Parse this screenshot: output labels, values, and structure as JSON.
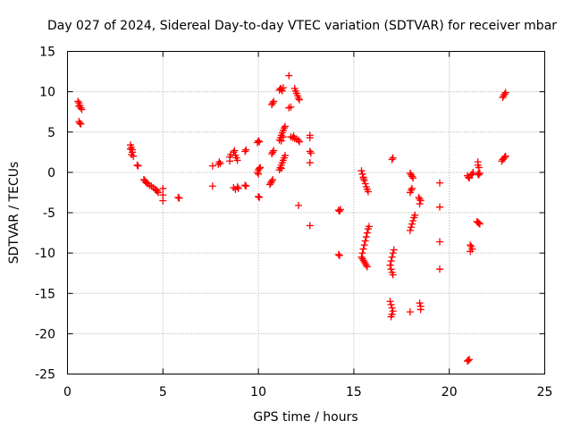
{
  "chart_data": {
    "type": "scatter",
    "title": "Day 027 of 2024, Sidereal Day-to-day VTEC variation (SDTVAR) for receiver mbar",
    "xlabel": "GPS time / hours",
    "ylabel": "SDTVAR / TECUs",
    "xlim": [
      0,
      25
    ],
    "ylim": [
      -25,
      15
    ],
    "xticks": [
      "0",
      "5",
      "10",
      "15",
      "20",
      "25"
    ],
    "yticks": [
      "15",
      "10",
      "5",
      "0",
      "-5",
      "-10",
      "-15",
      "-20",
      "-25"
    ],
    "xtick_values": [
      0,
      5,
      10,
      15,
      20,
      25
    ],
    "ytick_values": [
      15,
      10,
      5,
      0,
      -5,
      -10,
      -15,
      -20,
      -25
    ],
    "grid": true,
    "marker": "plus",
    "marker_color": "#ff0000",
    "series": [
      {
        "points": [
          [
            0.55,
            8.8
          ],
          [
            0.6,
            8.6
          ],
          [
            0.65,
            8.3
          ],
          [
            0.7,
            8.0
          ],
          [
            0.75,
            7.8
          ],
          [
            0.6,
            8.2
          ],
          [
            0.6,
            6.3
          ],
          [
            0.65,
            6.1
          ],
          [
            0.7,
            6.0
          ],
          [
            3.3,
            3.4
          ],
          [
            3.35,
            3.1
          ],
          [
            3.4,
            2.8
          ],
          [
            3.4,
            2.5
          ],
          [
            3.35,
            2.2
          ],
          [
            3.45,
            2.0
          ],
          [
            3.3,
            2.9
          ],
          [
            3.65,
            0.9
          ],
          [
            3.7,
            0.8
          ],
          [
            4.0,
            -0.9
          ],
          [
            4.05,
            -1.0
          ],
          [
            4.1,
            -1.2
          ],
          [
            4.2,
            -1.4
          ],
          [
            4.3,
            -1.6
          ],
          [
            4.4,
            -1.7
          ],
          [
            4.5,
            -1.9
          ],
          [
            4.6,
            -2.1
          ],
          [
            4.7,
            -2.3
          ],
          [
            4.75,
            -2.5
          ],
          [
            4.65,
            -2.2
          ],
          [
            4.15,
            -1.3
          ],
          [
            5.0,
            -2.0
          ],
          [
            5.0,
            -2.8
          ],
          [
            5.0,
            -3.5
          ],
          [
            5.8,
            -3.1
          ],
          [
            5.85,
            -3.2
          ],
          [
            7.6,
            -1.7
          ],
          [
            7.6,
            0.8
          ],
          [
            7.9,
            1.0
          ],
          [
            7.95,
            1.3
          ],
          [
            8.0,
            1.1
          ],
          [
            8.5,
            1.9
          ],
          [
            8.5,
            1.4
          ],
          [
            8.55,
            2.2
          ],
          [
            8.7,
            2.5
          ],
          [
            8.75,
            2.7
          ],
          [
            8.8,
            2.1
          ],
          [
            8.85,
            1.8
          ],
          [
            8.9,
            1.5
          ],
          [
            8.7,
            -1.9
          ],
          [
            8.8,
            -2.1
          ],
          [
            8.9,
            -1.8
          ],
          [
            8.95,
            -2.0
          ],
          [
            9.3,
            2.6
          ],
          [
            9.35,
            2.8
          ],
          [
            9.3,
            -1.6
          ],
          [
            9.35,
            -1.7
          ],
          [
            9.95,
            3.7
          ],
          [
            10.0,
            3.9
          ],
          [
            10.05,
            3.8
          ],
          [
            9.95,
            0.0
          ],
          [
            10.0,
            0.3
          ],
          [
            10.05,
            0.5
          ],
          [
            10.1,
            0.6
          ],
          [
            10.0,
            -3.0
          ],
          [
            10.05,
            -3.1
          ],
          [
            10.0,
            -0.2
          ],
          [
            10.7,
            8.4
          ],
          [
            10.75,
            8.6
          ],
          [
            10.8,
            8.8
          ],
          [
            10.7,
            2.3
          ],
          [
            10.75,
            2.5
          ],
          [
            10.8,
            2.7
          ],
          [
            10.6,
            -1.5
          ],
          [
            10.65,
            -1.3
          ],
          [
            10.7,
            -1.1
          ],
          [
            10.75,
            -0.9
          ],
          [
            11.1,
            10.2
          ],
          [
            11.2,
            10.3
          ],
          [
            11.3,
            10.5
          ],
          [
            11.25,
            10.1
          ],
          [
            11.15,
            10.4
          ],
          [
            11.1,
            4.0
          ],
          [
            11.15,
            4.3
          ],
          [
            11.2,
            4.6
          ],
          [
            11.25,
            4.9
          ],
          [
            11.3,
            5.2
          ],
          [
            11.35,
            5.5
          ],
          [
            11.4,
            5.7
          ],
          [
            11.2,
            3.9
          ],
          [
            11.3,
            4.4
          ],
          [
            11.1,
            0.3
          ],
          [
            11.15,
            0.6
          ],
          [
            11.2,
            0.9
          ],
          [
            11.25,
            1.2
          ],
          [
            11.3,
            1.5
          ],
          [
            11.35,
            1.8
          ],
          [
            11.4,
            2.1
          ],
          [
            11.2,
            0.5
          ],
          [
            11.6,
            12.0
          ],
          [
            11.6,
            8.0
          ],
          [
            11.7,
            8.1
          ],
          [
            11.7,
            4.4
          ],
          [
            11.8,
            4.3
          ],
          [
            11.9,
            4.2
          ],
          [
            12.0,
            4.1
          ],
          [
            12.1,
            4.0
          ],
          [
            12.15,
            3.8
          ],
          [
            11.85,
            4.5
          ],
          [
            11.9,
            10.4
          ],
          [
            11.95,
            10.1
          ],
          [
            12.0,
            9.8
          ],
          [
            12.05,
            9.5
          ],
          [
            12.1,
            9.2
          ],
          [
            12.15,
            9.0
          ],
          [
            12.1,
            -4.1
          ],
          [
            12.7,
            4.6
          ],
          [
            12.7,
            4.3
          ],
          [
            12.7,
            2.6
          ],
          [
            12.75,
            2.4
          ],
          [
            12.7,
            1.2
          ],
          [
            12.7,
            -6.6
          ],
          [
            14.2,
            -4.7
          ],
          [
            14.25,
            -4.8
          ],
          [
            14.3,
            -4.6
          ],
          [
            14.2,
            -10.2
          ],
          [
            14.25,
            -10.3
          ],
          [
            15.4,
            0.2
          ],
          [
            15.45,
            -0.2
          ],
          [
            15.5,
            -0.6
          ],
          [
            15.55,
            -1.0
          ],
          [
            15.6,
            -1.4
          ],
          [
            15.65,
            -1.8
          ],
          [
            15.7,
            -2.1
          ],
          [
            15.75,
            -2.4
          ],
          [
            15.5,
            -0.8
          ],
          [
            15.4,
            -10.5
          ],
          [
            15.45,
            -10.7
          ],
          [
            15.5,
            -10.9
          ],
          [
            15.55,
            -11.1
          ],
          [
            15.6,
            -11.3
          ],
          [
            15.65,
            -11.5
          ],
          [
            15.7,
            -11.7
          ],
          [
            15.5,
            -9.5
          ],
          [
            15.55,
            -9.0
          ],
          [
            15.6,
            -8.5
          ],
          [
            15.65,
            -8.0
          ],
          [
            15.7,
            -7.5
          ],
          [
            15.75,
            -7.0
          ],
          [
            15.8,
            -6.7
          ],
          [
            15.45,
            -10.0
          ],
          [
            17.0,
            1.6
          ],
          [
            17.05,
            1.8
          ],
          [
            16.9,
            -11.5
          ],
          [
            16.95,
            -11.0
          ],
          [
            17.0,
            -10.5
          ],
          [
            17.05,
            -10.0
          ],
          [
            17.1,
            -9.6
          ],
          [
            16.95,
            -12.0
          ],
          [
            17.0,
            -12.4
          ],
          [
            17.05,
            -12.7
          ],
          [
            16.9,
            -16.0
          ],
          [
            16.95,
            -16.4
          ],
          [
            17.0,
            -16.8
          ],
          [
            17.05,
            -17.2
          ],
          [
            17.0,
            -17.6
          ],
          [
            16.95,
            -17.9
          ],
          [
            17.95,
            -0.1
          ],
          [
            18.0,
            -0.3
          ],
          [
            18.05,
            -0.5
          ],
          [
            18.1,
            -0.7
          ],
          [
            17.95,
            -2.5
          ],
          [
            18.0,
            -2.2
          ],
          [
            18.05,
            -2.0
          ],
          [
            17.95,
            -7.2
          ],
          [
            18.0,
            -6.8
          ],
          [
            18.05,
            -6.4
          ],
          [
            18.1,
            -6.0
          ],
          [
            18.15,
            -5.6
          ],
          [
            18.2,
            -5.3
          ],
          [
            17.95,
            -17.3
          ],
          [
            18.4,
            -3.1
          ],
          [
            18.45,
            -3.3
          ],
          [
            18.5,
            -3.5
          ],
          [
            18.45,
            -3.9
          ],
          [
            18.45,
            -16.2
          ],
          [
            18.5,
            -16.6
          ],
          [
            18.5,
            -17.0
          ],
          [
            19.5,
            -1.3
          ],
          [
            19.5,
            -4.3
          ],
          [
            19.5,
            -8.6
          ],
          [
            19.5,
            -12.0
          ],
          [
            20.95,
            -0.4
          ],
          [
            21.0,
            -0.6
          ],
          [
            21.05,
            -0.7
          ],
          [
            21.15,
            -0.3
          ],
          [
            21.25,
            0.0
          ],
          [
            21.2,
            -0.2
          ],
          [
            20.95,
            -23.4
          ],
          [
            21.0,
            -23.3
          ],
          [
            21.05,
            -23.2
          ],
          [
            21.1,
            -9.0
          ],
          [
            21.15,
            -9.2
          ],
          [
            21.2,
            -9.5
          ],
          [
            21.1,
            -9.8
          ],
          [
            21.5,
            1.3
          ],
          [
            21.5,
            0.9
          ],
          [
            21.55,
            0.6
          ],
          [
            21.5,
            -0.2
          ],
          [
            21.55,
            -0.3
          ],
          [
            21.6,
            -0.1
          ],
          [
            21.45,
            -6.1
          ],
          [
            21.5,
            -6.2
          ],
          [
            21.55,
            -6.3
          ],
          [
            21.6,
            -6.4
          ],
          [
            22.8,
            9.3
          ],
          [
            22.85,
            9.5
          ],
          [
            22.9,
            9.7
          ],
          [
            22.95,
            9.9
          ],
          [
            22.75,
            1.4
          ],
          [
            22.8,
            1.6
          ],
          [
            22.85,
            1.7
          ],
          [
            22.9,
            1.9
          ],
          [
            22.95,
            2.0
          ]
        ]
      }
    ]
  }
}
